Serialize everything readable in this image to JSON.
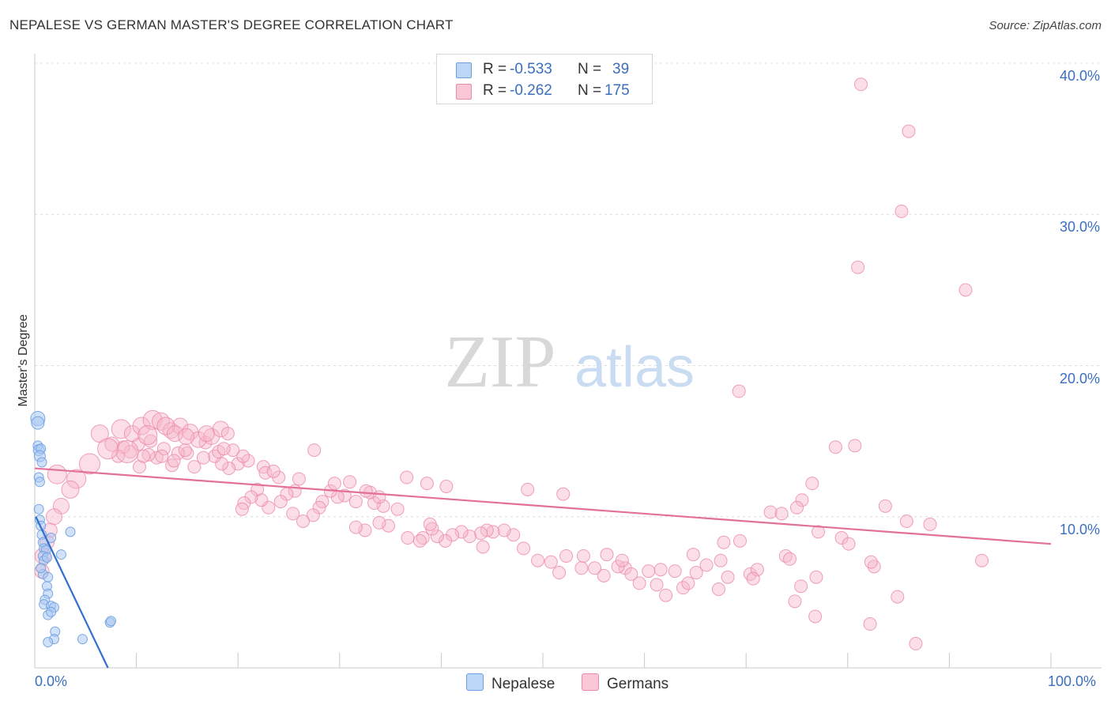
{
  "title": "NEPALESE VS GERMAN MASTER'S DEGREE CORRELATION CHART",
  "source": "Source: ZipAtlas.com",
  "watermark": {
    "zip": "ZIP",
    "atlas": "atlas"
  },
  "colors": {
    "nepalese_fill": "#a9c8f3",
    "nepalese_stroke": "#6d9fe0",
    "nepalese_line": "#2f6fd0",
    "germans_fill": "#f7b6c9",
    "germans_stroke": "#eb89a8",
    "germans_line": "#e2709a",
    "axis_text": "#3a6fc0"
  },
  "stats": [
    {
      "r_label": "R =",
      "r_value": "-0.533",
      "n_label": "N =",
      "n_value": "39"
    },
    {
      "r_label": "R =",
      "r_value": "-0.262",
      "n_label": "N =",
      "n_value": "175"
    }
  ],
  "legend": [
    "Nepalese",
    "Germans"
  ],
  "chart_data": {
    "type": "scatter",
    "title": "NEPALESE VS GERMAN MASTER'S DEGREE CORRELATION CHART",
    "xlabel": "",
    "ylabel": "Master's Degree",
    "xlim": [
      0,
      100
    ],
    "ylim": [
      0,
      40
    ],
    "x_tick_labels": [
      "0.0%",
      "100.0%"
    ],
    "y_ticks": [
      10,
      20,
      30,
      40
    ],
    "y_tick_labels": [
      "10.0%",
      "20.0%",
      "30.0%",
      "40.0%"
    ],
    "grid": "horizontal-dashed",
    "legend_position": "bottom-center",
    "series": [
      {
        "name": "Nepalese",
        "r": -0.533,
        "n": 39,
        "trend": {
          "x": [
            0.1,
            7.2
          ],
          "y": [
            10.0,
            0.0
          ]
        },
        "points": [
          [
            0.3,
            16.5,
            9
          ],
          [
            0.3,
            16.2,
            8
          ],
          [
            0.3,
            14.7,
            6
          ],
          [
            0.4,
            14.4,
            7
          ],
          [
            0.6,
            14.5,
            6
          ],
          [
            0.5,
            14.0,
            7
          ],
          [
            0.7,
            13.6,
            6
          ],
          [
            0.4,
            12.6,
            6
          ],
          [
            0.5,
            12.3,
            6
          ],
          [
            0.4,
            10.5,
            6
          ],
          [
            0.5,
            9.8,
            6
          ],
          [
            0.6,
            9.4,
            6
          ],
          [
            0.7,
            8.8,
            6
          ],
          [
            0.8,
            8.3,
            6
          ],
          [
            0.9,
            7.9,
            6
          ],
          [
            1.1,
            7.8,
            6
          ],
          [
            0.8,
            7.4,
            6
          ],
          [
            0.9,
            7.1,
            6
          ],
          [
            1.2,
            7.3,
            6
          ],
          [
            2.6,
            7.5,
            6
          ],
          [
            0.8,
            6.2,
            6
          ],
          [
            1.3,
            6.0,
            6
          ],
          [
            1.2,
            5.4,
            6
          ],
          [
            1.3,
            4.9,
            6
          ],
          [
            1.0,
            4.5,
            6
          ],
          [
            0.9,
            4.2,
            6
          ],
          [
            1.6,
            4.1,
            6
          ],
          [
            1.9,
            4.0,
            6
          ],
          [
            1.3,
            3.5,
            6
          ],
          [
            1.6,
            3.7,
            6
          ],
          [
            2.0,
            2.4,
            6
          ],
          [
            1.9,
            1.9,
            6
          ],
          [
            1.3,
            1.7,
            6
          ],
          [
            4.7,
            1.9,
            6
          ],
          [
            7.4,
            3.0,
            6
          ],
          [
            7.5,
            3.1,
            6
          ],
          [
            3.5,
            9.0,
            6
          ],
          [
            1.6,
            8.6,
            6
          ],
          [
            0.6,
            6.6,
            6
          ]
        ]
      },
      {
        "name": "Germans",
        "r": -0.262,
        "n": 175,
        "trend": {
          "x": [
            0,
            100
          ],
          "y": [
            13.2,
            8.2
          ]
        },
        "points": [
          [
            81.3,
            38.6,
            8
          ],
          [
            86.0,
            35.5,
            8
          ],
          [
            85.3,
            30.2,
            8
          ],
          [
            81.0,
            26.5,
            8
          ],
          [
            91.6,
            25.0,
            8
          ],
          [
            69.3,
            18.3,
            8
          ],
          [
            78.8,
            14.6,
            8
          ],
          [
            80.7,
            14.7,
            8
          ],
          [
            76.5,
            12.2,
            8
          ],
          [
            75.5,
            11.1,
            8
          ],
          [
            83.7,
            10.7,
            8
          ],
          [
            72.4,
            10.3,
            8
          ],
          [
            75.0,
            10.6,
            8
          ],
          [
            73.5,
            10.2,
            8
          ],
          [
            85.8,
            9.7,
            8
          ],
          [
            88.1,
            9.5,
            8
          ],
          [
            77.1,
            9.0,
            8
          ],
          [
            79.4,
            8.6,
            8
          ],
          [
            80.1,
            8.2,
            8
          ],
          [
            82.6,
            6.7,
            8
          ],
          [
            82.3,
            7.0,
            8
          ],
          [
            93.2,
            7.1,
            8
          ],
          [
            73.9,
            7.4,
            8
          ],
          [
            74.3,
            7.2,
            8
          ],
          [
            70.4,
            6.2,
            8
          ],
          [
            76.9,
            6.0,
            8
          ],
          [
            75.4,
            5.4,
            8
          ],
          [
            74.8,
            4.4,
            8
          ],
          [
            76.8,
            3.4,
            8
          ],
          [
            82.2,
            2.9,
            8
          ],
          [
            84.9,
            4.7,
            8
          ],
          [
            86.7,
            1.6,
            8
          ],
          [
            67.8,
            8.3,
            8
          ],
          [
            69.4,
            8.4,
            8
          ],
          [
            67.3,
            5.2,
            8
          ],
          [
            71.1,
            6.5,
            8
          ],
          [
            70.7,
            5.9,
            8
          ],
          [
            64.8,
            7.5,
            8
          ],
          [
            66.1,
            6.8,
            8
          ],
          [
            67.5,
            7.1,
            8
          ],
          [
            68.2,
            6.0,
            8
          ],
          [
            63.0,
            6.4,
            8
          ],
          [
            63.8,
            5.3,
            8
          ],
          [
            65.1,
            6.3,
            8
          ],
          [
            64.3,
            5.6,
            8
          ],
          [
            61.6,
            6.5,
            8
          ],
          [
            60.4,
            6.4,
            8
          ],
          [
            61.2,
            5.5,
            8
          ],
          [
            62.1,
            4.8,
            8
          ],
          [
            59.5,
            5.6,
            8
          ],
          [
            58.1,
            6.6,
            8
          ],
          [
            58.7,
            6.2,
            8
          ],
          [
            57.4,
            6.7,
            8
          ],
          [
            56.3,
            7.5,
            8
          ],
          [
            57.8,
            7.1,
            8
          ],
          [
            56.0,
            6.1,
            8
          ],
          [
            55.1,
            6.6,
            8
          ],
          [
            54.0,
            7.4,
            8
          ],
          [
            53.8,
            6.6,
            8
          ],
          [
            52.3,
            7.4,
            8
          ],
          [
            50.8,
            7.0,
            8
          ],
          [
            51.6,
            6.3,
            8
          ],
          [
            49.5,
            7.1,
            8
          ],
          [
            48.1,
            7.9,
            8
          ],
          [
            47.1,
            8.8,
            8
          ],
          [
            46.2,
            9.1,
            8
          ],
          [
            45.1,
            9.0,
            8
          ],
          [
            44.5,
            9.1,
            8
          ],
          [
            43.9,
            8.9,
            8
          ],
          [
            44.1,
            8.0,
            8
          ],
          [
            42.8,
            8.7,
            8
          ],
          [
            42.0,
            9.0,
            8
          ],
          [
            41.1,
            8.8,
            8
          ],
          [
            40.4,
            8.4,
            8
          ],
          [
            39.6,
            8.7,
            8
          ],
          [
            39.1,
            9.2,
            8
          ],
          [
            38.9,
            9.5,
            8
          ],
          [
            38.2,
            8.6,
            8
          ],
          [
            37.9,
            8.4,
            8
          ],
          [
            36.7,
            8.6,
            8
          ],
          [
            34.8,
            9.4,
            8
          ],
          [
            33.9,
            9.6,
            8
          ],
          [
            32.5,
            9.1,
            8
          ],
          [
            31.6,
            9.3,
            8
          ],
          [
            35.7,
            10.5,
            8
          ],
          [
            34.3,
            10.7,
            8
          ],
          [
            33.4,
            10.9,
            8
          ],
          [
            33.0,
            11.6,
            8
          ],
          [
            32.6,
            11.7,
            8
          ],
          [
            33.9,
            11.3,
            8
          ],
          [
            31.6,
            11.0,
            8
          ],
          [
            30.5,
            11.4,
            8
          ],
          [
            29.8,
            11.3,
            8
          ],
          [
            29.1,
            11.7,
            8
          ],
          [
            28.3,
            11.0,
            8
          ],
          [
            28.0,
            10.6,
            8
          ],
          [
            27.4,
            10.1,
            8
          ],
          [
            26.4,
            9.7,
            8
          ],
          [
            25.4,
            10.2,
            8
          ],
          [
            25.6,
            11.7,
            8
          ],
          [
            24.8,
            11.5,
            8
          ],
          [
            24.2,
            11.0,
            8
          ],
          [
            23.0,
            10.6,
            8
          ],
          [
            22.3,
            11.1,
            8
          ],
          [
            21.9,
            11.8,
            8
          ],
          [
            21.3,
            11.3,
            8
          ],
          [
            20.6,
            10.9,
            8
          ],
          [
            20.4,
            10.5,
            8
          ],
          [
            24.0,
            12.6,
            8
          ],
          [
            22.5,
            13.3,
            8
          ],
          [
            21.0,
            13.7,
            8
          ],
          [
            20.0,
            13.5,
            8
          ],
          [
            19.1,
            13.2,
            8
          ],
          [
            18.4,
            13.5,
            8
          ],
          [
            17.7,
            14.0,
            8
          ],
          [
            16.6,
            13.9,
            8
          ],
          [
            15.7,
            13.3,
            8
          ],
          [
            15.0,
            14.2,
            8
          ],
          [
            14.1,
            14.2,
            8
          ],
          [
            13.5,
            13.4,
            8
          ],
          [
            12.7,
            14.5,
            8
          ],
          [
            12.0,
            13.9,
            8
          ],
          [
            11.2,
            14.1,
            8
          ],
          [
            10.3,
            13.3,
            8
          ],
          [
            10.2,
            14.8,
            8
          ],
          [
            9.4,
            14.3,
            8
          ],
          [
            8.7,
            14.6,
            8
          ],
          [
            8.2,
            14.0,
            8
          ],
          [
            7.6,
            14.8,
            9
          ],
          [
            19.5,
            14.4,
            8
          ],
          [
            18.1,
            14.3,
            8
          ],
          [
            16.8,
            14.9,
            8
          ],
          [
            14.8,
            14.4,
            8
          ],
          [
            13.7,
            13.7,
            8
          ],
          [
            12.5,
            14.0,
            8
          ],
          [
            11.4,
            15.0,
            8
          ],
          [
            10.7,
            14.0,
            8
          ],
          [
            6.4,
            15.5,
            11
          ],
          [
            5.4,
            13.5,
            13
          ],
          [
            4.1,
            12.5,
            12
          ],
          [
            3.5,
            11.8,
            11
          ],
          [
            2.6,
            10.7,
            10
          ],
          [
            1.9,
            10.0,
            10
          ],
          [
            2.2,
            12.8,
            12
          ],
          [
            1.2,
            8.3,
            9
          ],
          [
            0.7,
            6.4,
            9
          ],
          [
            0.8,
            7.4,
            10
          ],
          [
            1.5,
            9.1,
            9
          ],
          [
            8.5,
            15.8,
            12
          ],
          [
            9.6,
            15.5,
            10
          ],
          [
            10.5,
            16.0,
            11
          ],
          [
            11.6,
            16.4,
            12
          ],
          [
            12.4,
            16.3,
            11
          ],
          [
            13.4,
            15.7,
            10
          ],
          [
            14.3,
            16.0,
            10
          ],
          [
            15.3,
            15.6,
            10
          ],
          [
            16.1,
            15.1,
            10
          ],
          [
            17.4,
            15.3,
            10
          ],
          [
            18.3,
            15.8,
            10
          ],
          [
            9.1,
            14.3,
            14
          ],
          [
            7.2,
            14.5,
            13
          ],
          [
            11.1,
            15.4,
            12
          ],
          [
            12.9,
            16.0,
            11
          ],
          [
            13.8,
            15.5,
            10
          ],
          [
            14.9,
            15.3,
            10
          ],
          [
            16.9,
            15.5,
            10
          ],
          [
            19.0,
            15.5,
            8
          ],
          [
            20.5,
            14.0,
            8
          ],
          [
            22.7,
            12.9,
            8
          ],
          [
            23.5,
            13.0,
            8
          ],
          [
            26.0,
            12.5,
            8
          ],
          [
            29.5,
            12.2,
            8
          ],
          [
            31.0,
            12.3,
            8
          ],
          [
            36.6,
            12.6,
            8
          ],
          [
            38.6,
            12.2,
            8
          ],
          [
            40.5,
            12.0,
            8
          ],
          [
            48.5,
            11.8,
            8
          ],
          [
            52.0,
            11.5,
            8
          ],
          [
            27.5,
            14.4,
            8
          ],
          [
            18.6,
            14.5,
            8
          ]
        ]
      }
    ]
  }
}
